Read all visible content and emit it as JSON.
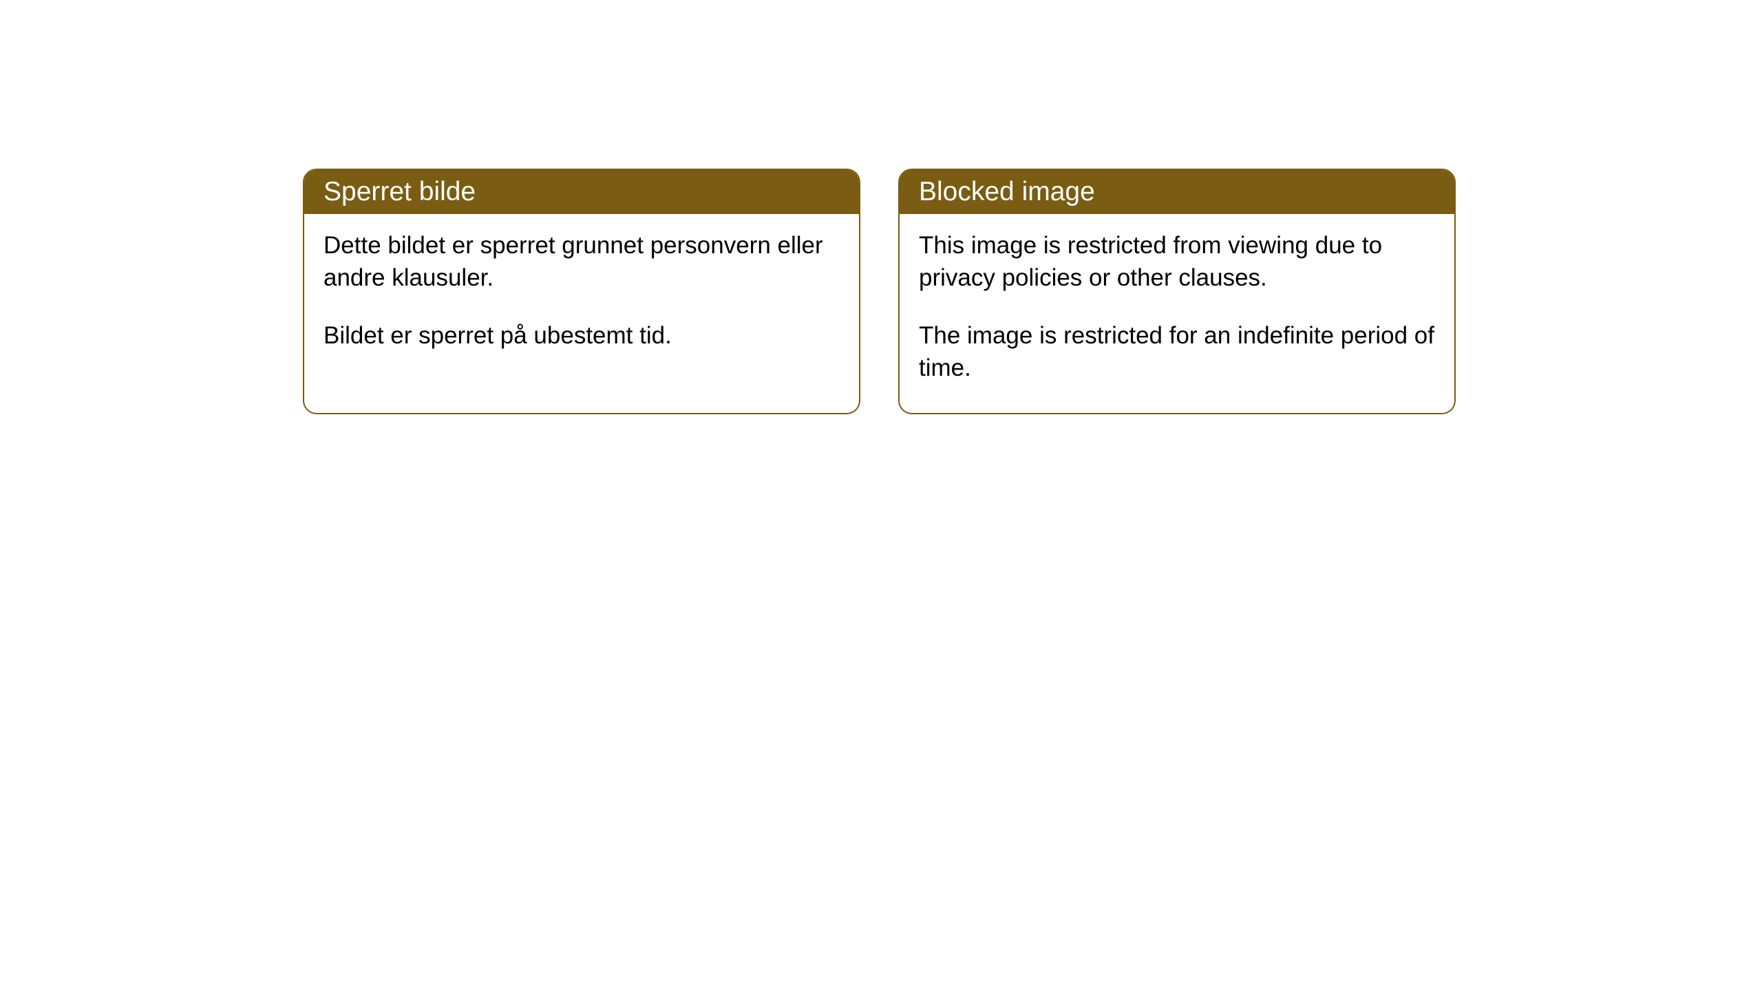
{
  "cards": [
    {
      "title": "Sperret bilde",
      "paragraph1": "Dette bildet er sperret grunnet personvern eller andre klausuler.",
      "paragraph2": "Bildet er sperret på ubestemt tid."
    },
    {
      "title": "Blocked image",
      "paragraph1": "This image is restricted from viewing due to privacy policies or other clauses.",
      "paragraph2": "The image is restricted for an indefinite period of time."
    }
  ],
  "styling": {
    "header_bg_color": "#7a5c12",
    "header_text_color": "#ffffff",
    "border_color": "#7a5c12",
    "body_bg_color": "#ffffff",
    "body_text_color": "#000000",
    "border_radius": 20,
    "title_fontsize": 39,
    "body_fontsize": 35
  }
}
